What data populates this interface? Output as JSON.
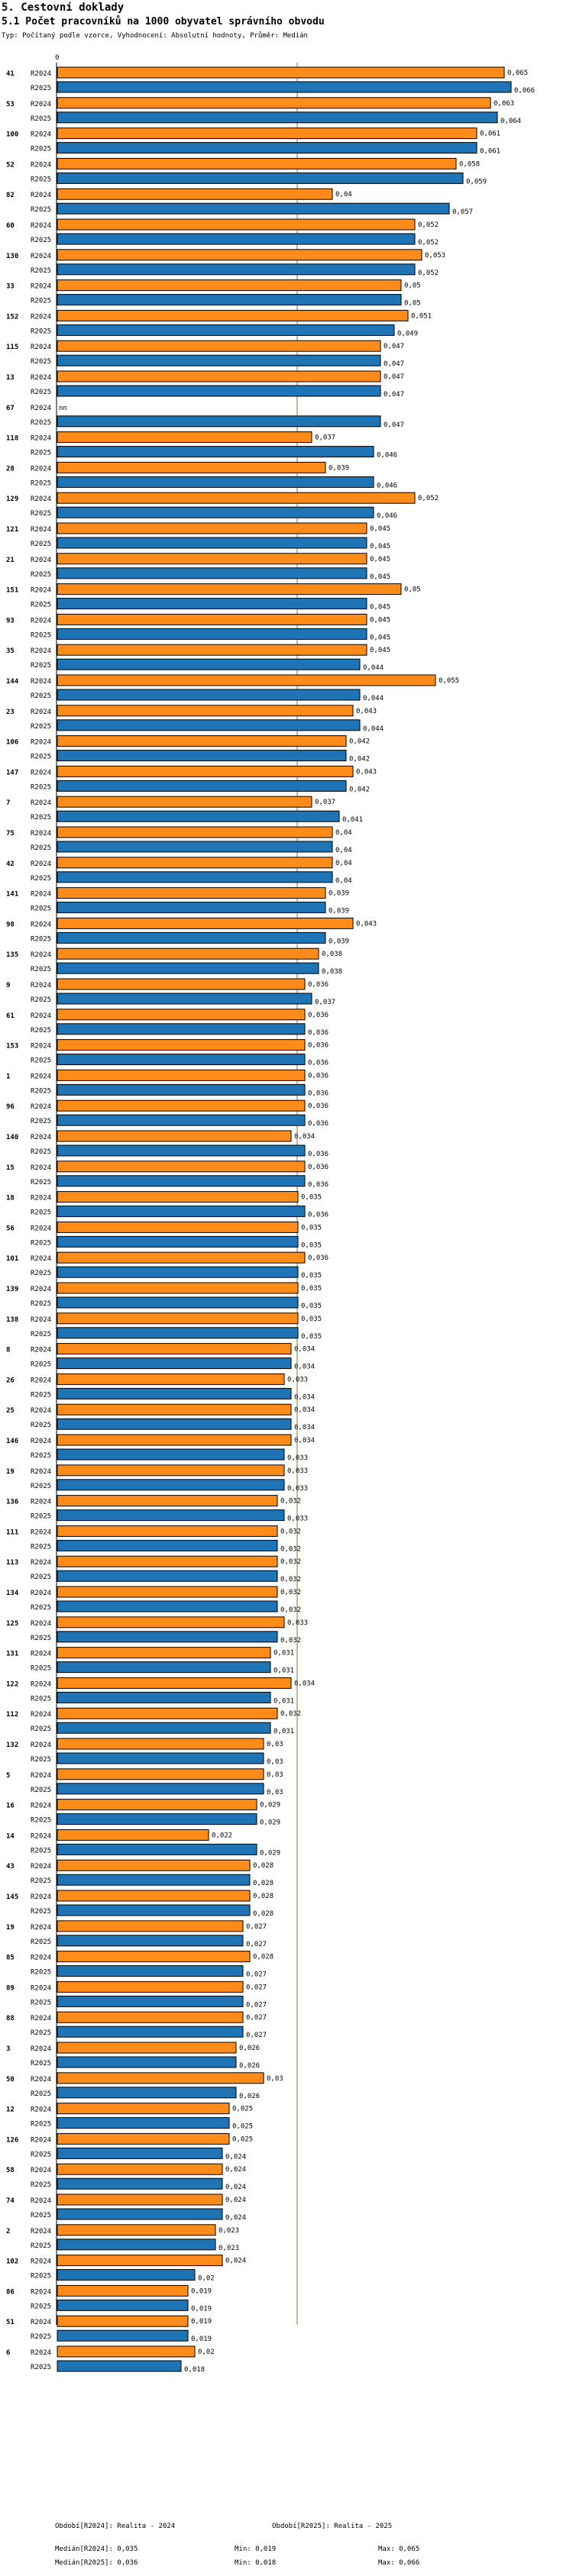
{
  "heading": "5. Cestovní doklady",
  "title": "5.1 Počet pracovníků na 1000 obyvatel správního obvodu",
  "subtitle": "Typ: Počítaný podle vzorce, Vyhodnocení: Absolutní hodnoty, Průměr: Medián",
  "chart_data": {
    "type": "bar",
    "orientation": "horizontal",
    "axis_start_label": "0",
    "xlim": [
      0,
      0.066
    ],
    "median": 0.035,
    "categories": [
      "41",
      "53",
      "100",
      "52",
      "82",
      "60",
      "130",
      "33",
      "152",
      "115",
      "13",
      "67",
      "118",
      "28",
      "129",
      "121",
      "21",
      "151",
      "93",
      "35",
      "144",
      "23",
      "106",
      "147",
      "7",
      "75",
      "42",
      "141",
      "98",
      "135",
      "9",
      "61",
      "153",
      "1",
      "96",
      "140",
      "15",
      "18",
      "56",
      "101",
      "139",
      "138",
      "8",
      "26",
      "25",
      "146",
      "19",
      "136",
      "111",
      "113",
      "134",
      "125",
      "131",
      "122",
      "112",
      "132",
      "5",
      "16",
      "14",
      "43",
      "145",
      "19",
      "85",
      "89",
      "88",
      "3",
      "50",
      "12",
      "126",
      "58",
      "74",
      "2",
      "102",
      "86",
      "51",
      "6"
    ],
    "series": [
      {
        "name": "R2024",
        "color": "#ff8c1a",
        "values": [
          0.065,
          0.063,
          0.061,
          0.058,
          0.04,
          0.052,
          0.053,
          0.05,
          0.051,
          0.047,
          0.047,
          null,
          0.037,
          0.039,
          0.052,
          0.045,
          0.045,
          0.05,
          0.045,
          0.045,
          0.055,
          0.043,
          0.042,
          0.043,
          0.037,
          0.04,
          0.04,
          0.039,
          0.043,
          0.038,
          0.036,
          0.036,
          0.036,
          0.036,
          0.036,
          0.034,
          0.036,
          0.035,
          0.035,
          0.036,
          0.035,
          0.035,
          0.034,
          0.033,
          0.034,
          0.034,
          0.033,
          0.032,
          0.032,
          0.032,
          0.032,
          0.033,
          0.031,
          0.034,
          0.032,
          0.03,
          0.03,
          0.029,
          0.022,
          0.028,
          0.028,
          0.027,
          0.028,
          0.027,
          0.027,
          0.026,
          0.03,
          0.025,
          0.025,
          0.024,
          0.024,
          0.023,
          0.024,
          0.019,
          0.019,
          0.02
        ],
        "labels": [
          "0,065",
          "0,063",
          "0,061",
          "0,058",
          "0,04",
          "0,052",
          "0,053",
          "0,05",
          "0,051",
          "0,047",
          "0,047",
          "nn",
          "0,037",
          "0,039",
          "0,052",
          "0,045",
          "0,045",
          "0,05",
          "0,045",
          "0,045",
          "0,055",
          "0,043",
          "0,042",
          "0,043",
          "0,037",
          "0,04",
          "0,04",
          "0,039",
          "0,043",
          "0,038",
          "0,036",
          "0,036",
          "0,036",
          "0,036",
          "0,036",
          "0,034",
          "0,036",
          "0,035",
          "0,035",
          "0,036",
          "0,035",
          "0,035",
          "0,034",
          "0,033",
          "0,034",
          "0,034",
          "0,033",
          "0,032",
          "0,032",
          "0,032",
          "0,032",
          "0,033",
          "0,031",
          "0,034",
          "0,032",
          "0,03",
          "0,03",
          "0,029",
          "0,022",
          "0,028",
          "0,028",
          "0,027",
          "0,028",
          "0,027",
          "0,027",
          "0,026",
          "0,03",
          "0,025",
          "0,025",
          "0,024",
          "0,024",
          "0,023",
          "0,024",
          "0,019",
          "0,019",
          "0,02"
        ]
      },
      {
        "name": "R2025",
        "color": "#1f74b6",
        "values": [
          0.066,
          0.064,
          0.061,
          0.059,
          0.057,
          0.052,
          0.052,
          0.05,
          0.049,
          0.047,
          0.047,
          0.047,
          0.046,
          0.046,
          0.046,
          0.045,
          0.045,
          0.045,
          0.045,
          0.044,
          0.044,
          0.044,
          0.042,
          0.042,
          0.041,
          0.04,
          0.04,
          0.039,
          0.039,
          0.038,
          0.037,
          0.036,
          0.036,
          0.036,
          0.036,
          0.036,
          0.036,
          0.036,
          0.035,
          0.035,
          0.035,
          0.035,
          0.034,
          0.034,
          0.034,
          0.033,
          0.033,
          0.033,
          0.032,
          0.032,
          0.032,
          0.032,
          0.031,
          0.031,
          0.031,
          0.03,
          0.03,
          0.029,
          0.029,
          0.028,
          0.028,
          0.027,
          0.027,
          0.027,
          0.027,
          0.026,
          0.026,
          0.025,
          0.024,
          0.024,
          0.024,
          0.023,
          0.02,
          0.019,
          0.019,
          0.018
        ],
        "labels": [
          "0,066",
          "0,064",
          "0,061",
          "0,059",
          "0,057",
          "0,052",
          "0,052",
          "0,05",
          "0,049",
          "0,047",
          "0,047",
          "0,047",
          "0,046",
          "0,046",
          "0,046",
          "0,045",
          "0,045",
          "0,045",
          "0,045",
          "0,044",
          "0,044",
          "0,044",
          "0,042",
          "0,042",
          "0,041",
          "0,04",
          "0,04",
          "0,039",
          "0,039",
          "0,038",
          "0,037",
          "0,036",
          "0,036",
          "0,036",
          "0,036",
          "0,036",
          "0,036",
          "0,036",
          "0,035",
          "0,035",
          "0,035",
          "0,035",
          "0,034",
          "0,034",
          "0,034",
          "0,033",
          "0,033",
          "0,033",
          "0,032",
          "0,032",
          "0,032",
          "0,032",
          "0,031",
          "0,031",
          "0,031",
          "0,03",
          "0,03",
          "0,029",
          "0,029",
          "0,028",
          "0,028",
          "0,027",
          "0,027",
          "0,027",
          "0,027",
          "0,026",
          "0,026",
          "0,025",
          "0,024",
          "0,024",
          "0,024",
          "0,023",
          "0,02",
          "0,019",
          "0,019",
          "0,018"
        ]
      }
    ]
  },
  "legend": {
    "period_2024": "Období[R2024]: Realita - 2024",
    "period_2025": "Období[R2025]: Realita - 2025",
    "median_2024": "Medián[R2024]: 0,035",
    "median_2025": "Medián[R2025]: 0,036",
    "min_2024": "Min: 0,019",
    "min_2025": "Min: 0,018",
    "max_2024": "Max: 0,065",
    "max_2025": "Max: 0,066"
  }
}
